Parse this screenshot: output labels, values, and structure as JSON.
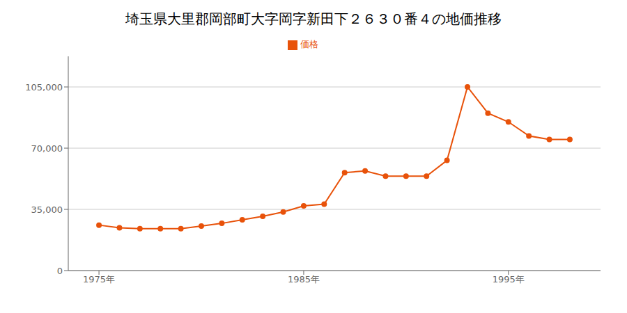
{
  "chart_data": {
    "type": "line",
    "title": "埼玉県大里郡岡部町大字岡字新田下２６３０番４の地価推移",
    "x": [
      1975,
      1976,
      1977,
      1978,
      1979,
      1980,
      1981,
      1982,
      1983,
      1984,
      1985,
      1986,
      1987,
      1988,
      1989,
      1990,
      1991,
      1992,
      1993,
      1994,
      1995,
      1996,
      1997,
      1998
    ],
    "series": [
      {
        "name": "価格",
        "color": "#e8520a",
        "values": [
          26000,
          24500,
          24000,
          24000,
          24000,
          25500,
          27000,
          29000,
          31000,
          33500,
          37000,
          38000,
          56000,
          57000,
          54000,
          54000,
          54000,
          63000,
          105000,
          90000,
          85000,
          77000,
          75000,
          75000
        ]
      }
    ],
    "xlim": [
      1973.5,
      1999.5
    ],
    "xticks": [
      {
        "value": 1975,
        "label": "1975年"
      },
      {
        "value": 1985,
        "label": "1985年"
      },
      {
        "value": 1995,
        "label": "1995年"
      }
    ],
    "ylim": [
      0,
      122500
    ],
    "yticks": [
      0,
      {
        "value": 35000,
        "label": "35,000"
      },
      {
        "value": 70000,
        "label": "70,000"
      },
      {
        "value": 105000,
        "label": "105,000"
      }
    ],
    "grid": true,
    "legend": "top",
    "marker": "circle"
  }
}
